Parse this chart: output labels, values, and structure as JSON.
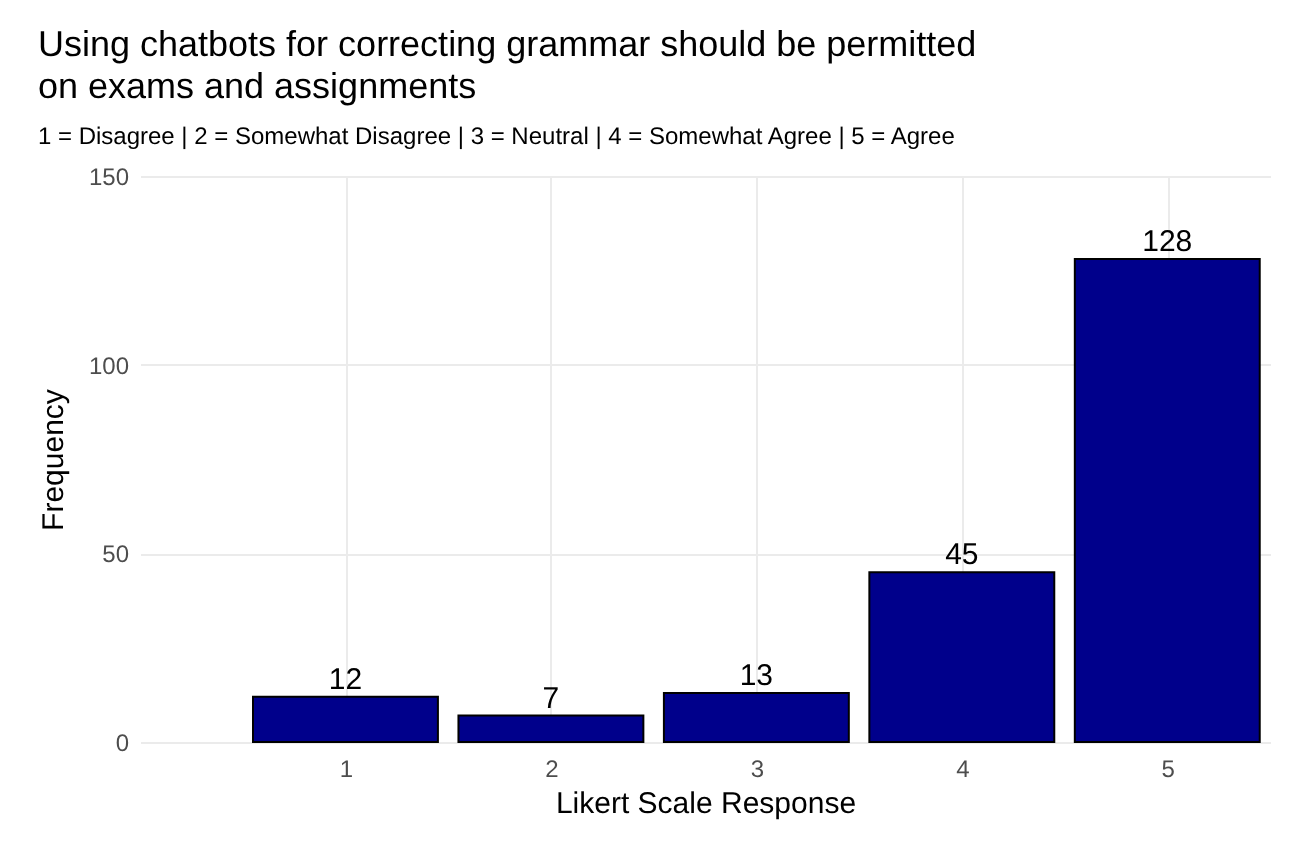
{
  "chart_data": {
    "type": "bar",
    "title": "Using chatbots for correcting grammar should be permitted\non exams and assignments",
    "subtitle": "1 = Disagree | 2 = Somewhat Disagree | 3 = Neutral | 4 = Somewhat Agree | 5 = Agree",
    "xlabel": "Likert Scale Response",
    "ylabel": "Frequency",
    "x": [
      1,
      2,
      3,
      4,
      5
    ],
    "values": [
      12,
      7,
      13,
      45,
      128
    ],
    "color": "#00008b",
    "xlim": [
      0,
      5.5
    ],
    "xticks": [
      1,
      2,
      3,
      4,
      5
    ],
    "ylim": [
      0,
      150
    ],
    "yticks": [
      0,
      50,
      100,
      150
    ],
    "grid": true,
    "data_labels": true
  }
}
